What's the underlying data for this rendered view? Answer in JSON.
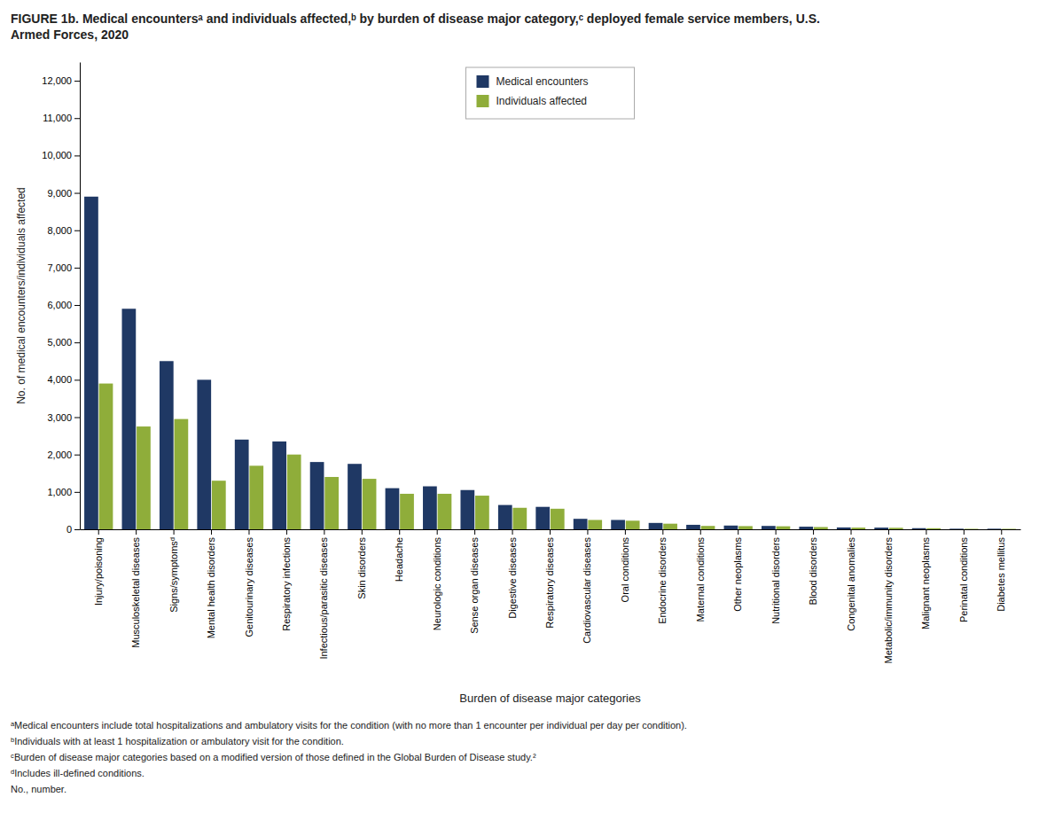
{
  "chart_data": {
    "type": "bar",
    "title": "FIGURE 1b. Medical encountersᵃ and individuals affected,ᵇ by burden of disease major category,ᶜ deployed female service members, U.S.\nArmed Forces, 2020",
    "x_label": "Burden of disease major categories",
    "y_label": "No. of medical encounters/individuals affected",
    "categories": [
      "Injury/poisoning",
      "Musculoskeletal diseases",
      "Signs/symptomsᵈ",
      "Mental health disorders",
      "Genitourinary diseases",
      "Respiratory infections",
      "Infectious/parasitic diseases",
      "Skin disorders",
      "Headache",
      "Neurologic conditions",
      "Sense organ diseases",
      "Digestive diseases",
      "Respiratory diseases",
      "Cardiovascular diseases",
      "Oral conditions",
      "Endocrine disorders",
      "Maternal conditions",
      "Other neoplasms",
      "Nutritional disorders",
      "Blood disorders",
      "Congenital anomalies",
      "Metabolic/immunity disorders",
      "Malignant neoplasms",
      "Perinatal conditions",
      "Diabetes mellitus"
    ],
    "series": [
      {
        "name": "Medical encounters",
        "color": "#1F3864",
        "values": [
          8900,
          5900,
          4500,
          4000,
          2400,
          2350,
          1800,
          1750,
          1100,
          1150,
          1050,
          650,
          600,
          280,
          250,
          170,
          120,
          100,
          90,
          70,
          50,
          45,
          30,
          15,
          15
        ]
      },
      {
        "name": "Individuals affected",
        "color": "#8FAD3A",
        "values": [
          3900,
          2750,
          2950,
          1300,
          1700,
          2000,
          1400,
          1350,
          950,
          950,
          900,
          575,
          550,
          250,
          230,
          150,
          90,
          85,
          80,
          60,
          45,
          40,
          28,
          12,
          12
        ]
      }
    ],
    "ylim": [
      0,
      12500
    ],
    "yticks": [
      0,
      {
        "value": 1000,
        "label": "1,000"
      },
      {
        "value": 2000,
        "label": "2,000"
      },
      {
        "value": 3000,
        "label": "3,000"
      },
      {
        "value": 4000,
        "label": "4,000"
      },
      {
        "value": 5000,
        "label": "5,000"
      },
      {
        "value": 6000,
        "label": "6,000"
      },
      {
        "value": 7000,
        "label": "7,000"
      },
      {
        "value": 8000,
        "label": "8,000"
      },
      {
        "value": 9000,
        "label": "9,000"
      },
      {
        "value": 10000,
        "label": "10,000"
      },
      {
        "value": 11000,
        "label": "11,000"
      },
      {
        "value": 12000,
        "label": "12,000"
      }
    ],
    "grid": false,
    "legend": "top",
    "annotations": [
      "ᵃMedical encounters include total hospitalizations and ambulatory visits for the condition (with no more than 1 encounter per individual per day per condition).",
      "ᵇIndividuals with at least 1 hospitalization or ambulatory visit for the condition.",
      "ᶜBurden of disease major categories based on a modified version of those defined in the Global Burden of Disease study.²",
      "ᵈIncludes ill-defined conditions.",
      "No., number."
    ]
  }
}
